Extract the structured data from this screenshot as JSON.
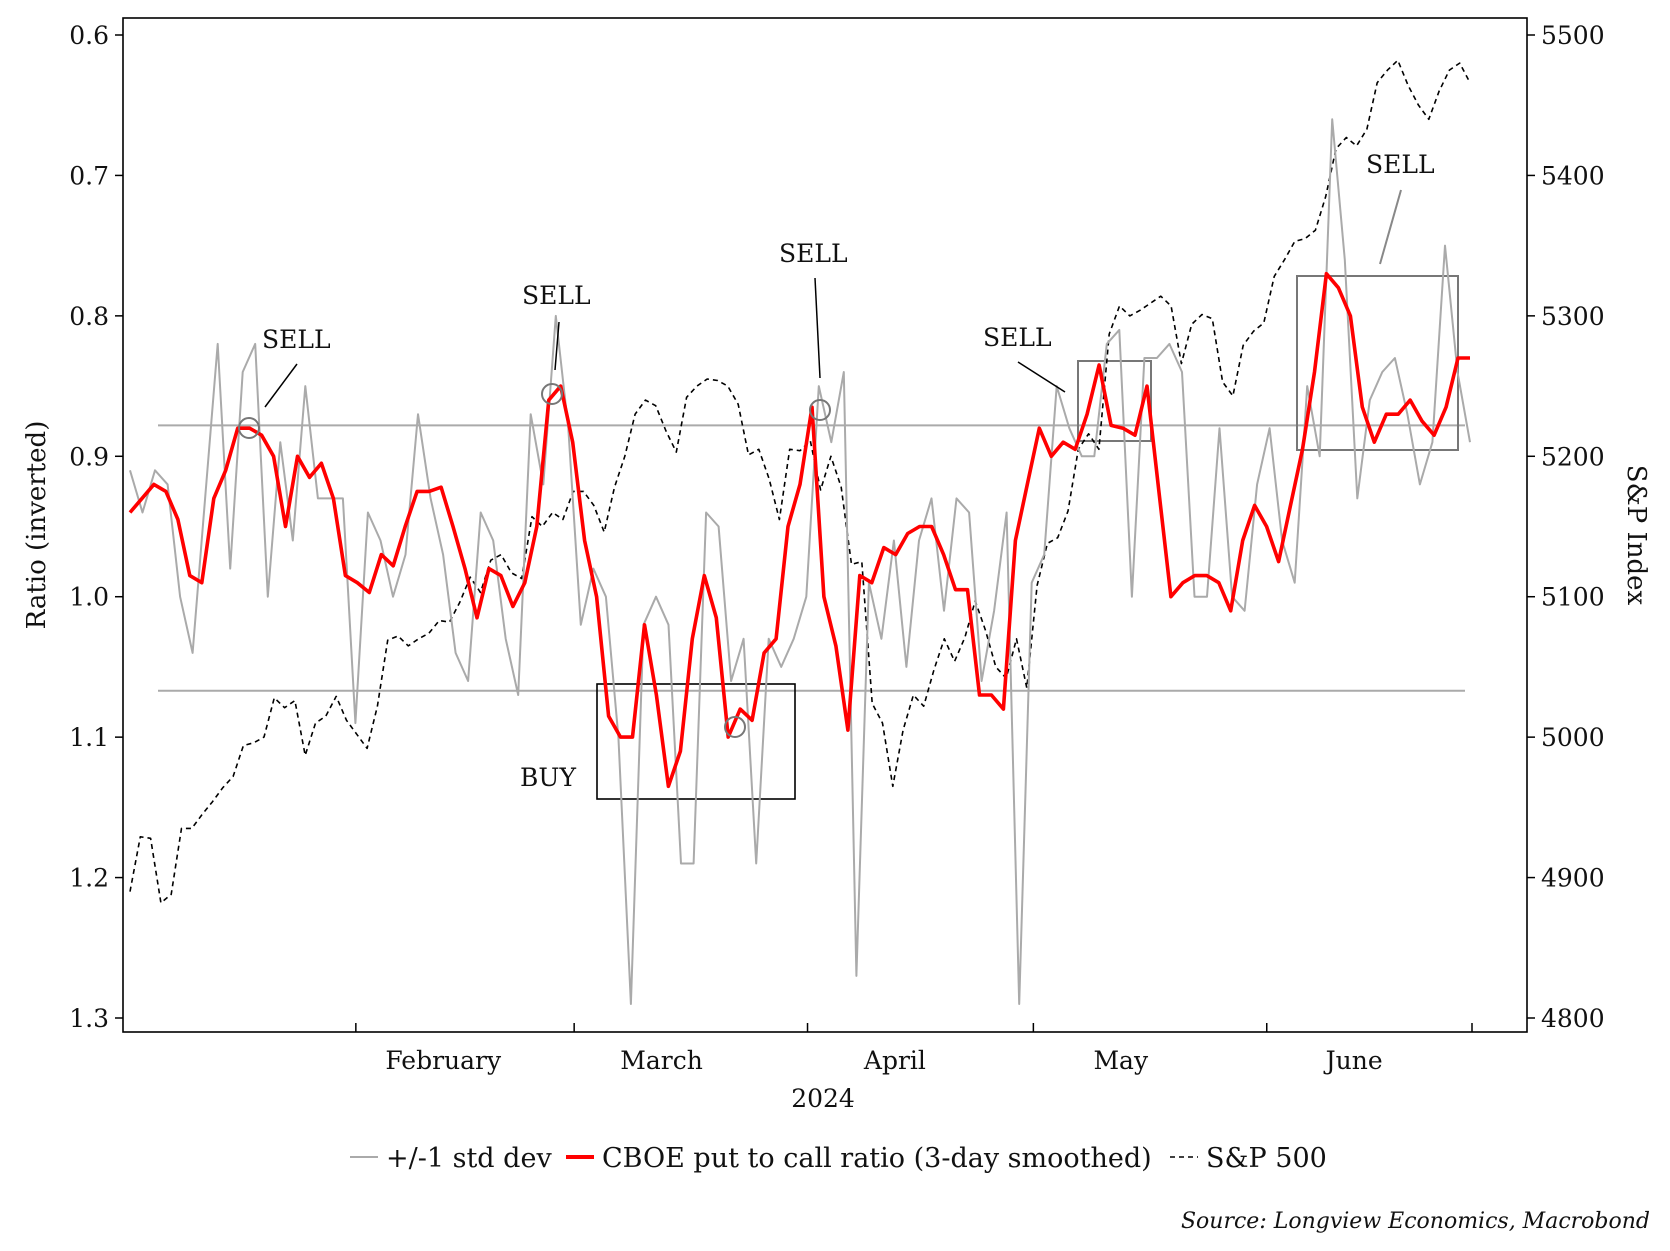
{
  "chart_data": {
    "type": "line",
    "title": "",
    "xlabel": "2024",
    "ylabel": "Ratio (inverted)",
    "ylabel_right": "S&P Index",
    "source": "Source: Longview Economics, Macrobond",
    "x_start": "2024-01-02",
    "x_end": "2024-06-28",
    "x_tick_labels": [
      "February",
      "March",
      "April",
      "May",
      "June"
    ],
    "y_left": {
      "ticks": [
        "0.6",
        "0.7",
        "0.8",
        "0.9",
        "1.0",
        "1.1",
        "1.2",
        "1.3"
      ],
      "ylim": [
        0.6,
        1.3
      ],
      "inverted": true
    },
    "y_right": {
      "ticks": [
        "5500",
        "5400",
        "5300",
        "5200",
        "5100",
        "5000",
        "4900",
        "4800"
      ],
      "ylim": [
        4800,
        5500
      ]
    },
    "std_dev_band": [
      0.878,
      1.067
    ],
    "legend": {
      "position": "bottom",
      "entries": [
        "+/-1 std dev",
        "CBOE put to call ratio (3-day smoothed)",
        "S&P 500"
      ]
    },
    "colors": {
      "std": "#aaaaaa",
      "ratio": "#ff0000",
      "spx": "#000000",
      "box_dark": "#000000",
      "box_light": "#777777"
    },
    "annotations": [
      "SELL",
      "SELL",
      "SELL",
      "SELL",
      "SELL",
      "BUY"
    ],
    "series": [
      {
        "name": "S&P 500",
        "axis": "right",
        "style": "dashed",
        "values": [
          4890,
          4929,
          4928,
          4882,
          4888,
          4935,
          4935,
          4945,
          4954,
          4964,
          4972,
          4994,
          4996,
          5000,
          5028,
          5021,
          5026,
          4987,
          5010,
          5015,
          5029,
          5012,
          5002,
          4992,
          5022,
          5069,
          5072,
          5065,
          5070,
          5074,
          5083,
          5082,
          5096,
          5114,
          5103,
          5126,
          5130,
          5117,
          5113,
          5157,
          5150,
          5160,
          5155,
          5175,
          5175,
          5165,
          5146,
          5178,
          5200,
          5230,
          5240,
          5236,
          5218,
          5203,
          5242,
          5250,
          5255,
          5254,
          5250,
          5237,
          5201,
          5205,
          5184,
          5155,
          5205,
          5204,
          5211,
          5176,
          5200,
          5178,
          5123,
          5125,
          5024,
          5010,
          4965,
          5005,
          5030,
          5022,
          5048,
          5070,
          5054,
          5071,
          5097,
          5076,
          5050,
          5042,
          5070,
          5035,
          5108,
          5138,
          5142,
          5161,
          5205,
          5216,
          5205,
          5287,
          5307,
          5300,
          5304,
          5309,
          5314,
          5307,
          5266,
          5294,
          5301,
          5298,
          5253,
          5243,
          5279,
          5289,
          5295,
          5328,
          5340,
          5353,
          5355,
          5361,
          5385,
          5419,
          5427,
          5421,
          5433,
          5466,
          5475,
          5482,
          5464,
          5450,
          5440,
          5460,
          5475,
          5480,
          5466
        ]
      },
      {
        "name": "+/-1 std dev",
        "axis": "left",
        "style": "thin",
        "values": [
          0.91,
          0.94,
          0.91,
          0.92,
          1.0,
          1.04,
          0.93,
          0.82,
          0.98,
          0.84,
          0.82,
          1.0,
          0.89,
          0.96,
          0.85,
          0.93,
          0.93,
          0.93,
          1.09,
          0.94,
          0.96,
          1.0,
          0.97,
          0.87,
          0.93,
          0.97,
          1.04,
          1.06,
          0.94,
          0.96,
          1.03,
          1.07,
          0.87,
          0.92,
          0.8,
          0.88,
          1.02,
          0.98,
          1.0,
          1.1,
          1.29,
          1.02,
          1.0,
          1.02,
          1.19,
          1.19,
          0.94,
          0.95,
          1.06,
          1.03,
          1.19,
          1.03,
          1.05,
          1.03,
          1.0,
          0.85,
          0.89,
          0.84,
          1.27,
          0.99,
          1.03,
          0.96,
          1.05,
          0.96,
          0.93,
          1.01,
          0.93,
          0.94,
          1.06,
          1.01,
          0.94,
          1.29,
          0.99,
          0.97,
          0.85,
          0.88,
          0.9,
          0.9,
          0.82,
          0.81,
          1.0,
          0.83,
          0.83,
          0.82,
          0.84,
          1.0,
          1.0,
          0.88,
          1.0,
          1.01,
          0.92,
          0.88,
          0.96,
          0.99,
          0.85,
          0.9,
          0.66,
          0.76,
          0.93,
          0.86,
          0.84,
          0.83,
          0.87,
          0.92,
          0.89,
          0.75,
          0.84,
          0.89
        ]
      },
      {
        "name": "CBOE put to call ratio (3-day smoothed)",
        "axis": "left",
        "style": "bold",
        "values": [
          0.94,
          0.93,
          0.92,
          0.925,
          0.945,
          0.985,
          0.99,
          0.93,
          0.91,
          0.88,
          0.88,
          0.885,
          0.9,
          0.95,
          0.9,
          0.915,
          0.905,
          0.93,
          0.985,
          0.99,
          0.997,
          0.97,
          0.978,
          0.95,
          0.925,
          0.925,
          0.922,
          0.95,
          0.98,
          1.015,
          0.98,
          0.985,
          1.007,
          0.99,
          0.95,
          0.86,
          0.85,
          0.89,
          0.96,
          1.0,
          1.085,
          1.1,
          1.1,
          1.02,
          1.07,
          1.135,
          1.11,
          1.03,
          0.985,
          1.015,
          1.1,
          1.08,
          1.088,
          1.04,
          1.03,
          0.95,
          0.92,
          0.865,
          1.0,
          1.035,
          1.095,
          0.985,
          0.99,
          0.965,
          0.97,
          0.955,
          0.95,
          0.95,
          0.97,
          0.995,
          0.995,
          1.07,
          1.07,
          1.08,
          0.96,
          0.92,
          0.88,
          0.9,
          0.89,
          0.895,
          0.87,
          0.835,
          0.878,
          0.88,
          0.885,
          0.85,
          0.925,
          1.0,
          0.99,
          0.985,
          0.985,
          0.99,
          1.01,
          0.96,
          0.935,
          0.95,
          0.975,
          0.935,
          0.895,
          0.84,
          0.77,
          0.78,
          0.8,
          0.865,
          0.89,
          0.87,
          0.87,
          0.86,
          0.875,
          0.885,
          0.865,
          0.83,
          0.83
        ]
      }
    ]
  }
}
